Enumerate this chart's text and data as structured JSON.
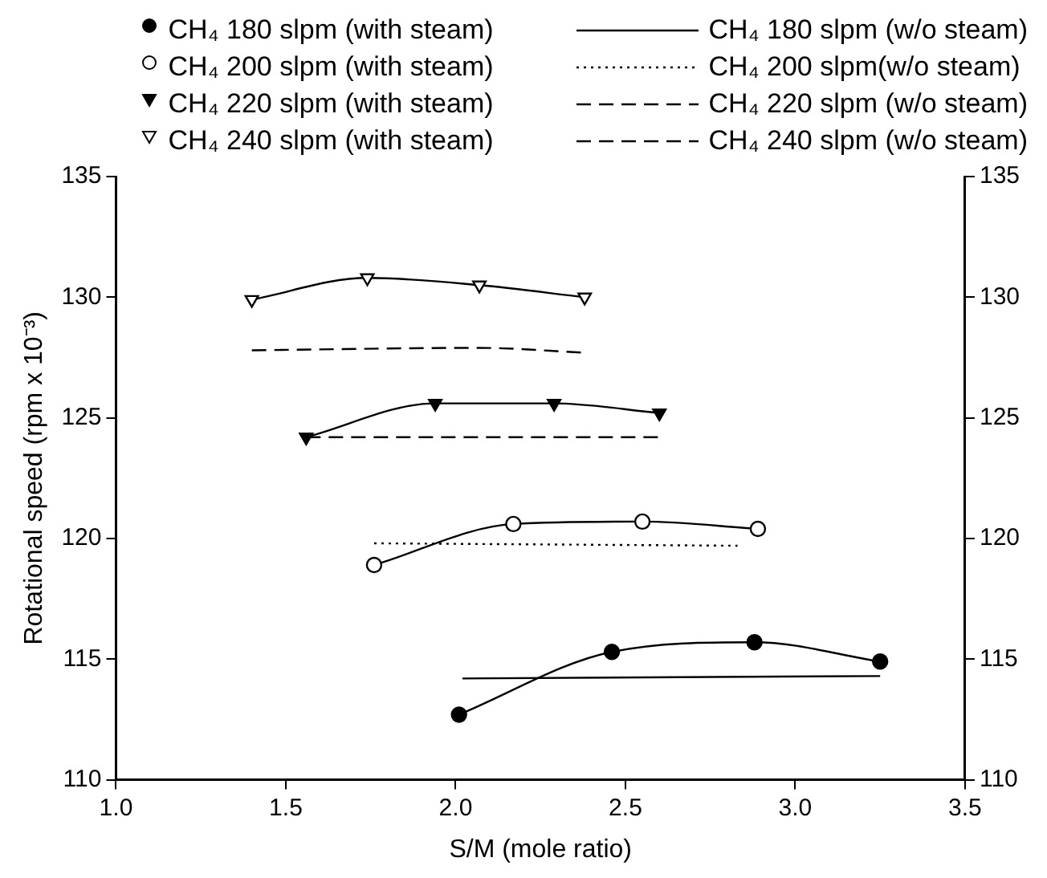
{
  "chart_data": {
    "type": "line",
    "xlabel": "S/M (mole ratio)",
    "ylabel": "Rotational speed (rpm x 10⁻³)",
    "xlim": [
      1.0,
      3.5
    ],
    "xticks": [
      {
        "value": 1,
        "label": "1.0"
      },
      1.5,
      {
        "value": 2,
        "label": "2.0"
      },
      2.5,
      {
        "value": 3,
        "label": "3.0"
      },
      3.5
    ],
    "ylim": [
      110,
      135
    ],
    "yticks": [
      110,
      115,
      120,
      125,
      130,
      135
    ],
    "y2lim": [
      110,
      135
    ],
    "y2ticks": [
      110,
      115,
      120,
      125,
      130,
      135
    ],
    "grid": false,
    "legend": "top",
    "series": [
      {
        "name": "CH₄ 180 slpm (with steam)",
        "color": "#000000",
        "colors": [
          "#000000",
          "#000000",
          "#000000",
          "#000000"
        ],
        "marker": "circle",
        "line_style": "solid",
        "x": [
          2.01,
          2.46,
          2.88,
          3.25
        ],
        "values": [
          112.7,
          115.3,
          115.7,
          114.9
        ]
      },
      {
        "name": "CH₄ 180 slpm (w/o steam)",
        "color": "#000000",
        "marker": "none",
        "line_style": "solid",
        "x": [
          2.02,
          3.25
        ],
        "values": [
          114.2,
          114.3
        ]
      },
      {
        "name": "CH₄ 200 slpm (with steam)",
        "color": "#000000",
        "colors": [
          "#ffffff",
          "#ffffff",
          "#ffffff",
          "#ffffff"
        ],
        "marker": "circle",
        "line_style": "solid",
        "x": [
          1.76,
          2.17,
          2.55,
          2.89
        ],
        "values": [
          118.9,
          120.6,
          120.7,
          120.4
        ]
      },
      {
        "name": "CH₄ 200 slpm(w/o steam)",
        "color": "#000000",
        "marker": "none",
        "line_style": "dotted",
        "x": [
          1.76,
          2.83
        ],
        "values": [
          119.8,
          119.7
        ]
      },
      {
        "name": "CH₄ 220 slpm (with steam)",
        "color": "#000000",
        "colors": [
          "#000000",
          "#000000",
          "#000000",
          "#000000"
        ],
        "marker": "triangle",
        "line_style": "solid",
        "x": [
          1.56,
          1.94,
          2.29,
          2.6
        ],
        "values": [
          124.2,
          125.6,
          125.6,
          125.2
        ]
      },
      {
        "name": "CH₄ 220 slpm (w/o steam)",
        "color": "#000000",
        "marker": "none",
        "line_style": "dashed",
        "x": [
          1.56,
          2.6
        ],
        "values": [
          124.2,
          124.2
        ]
      },
      {
        "name": "CH₄ 240 slpm (with steam)",
        "color": "#000000",
        "colors": [
          "#ffffff",
          "#ffffff",
          "#ffffff",
          "#ffffff"
        ],
        "marker": "triangle",
        "line_style": "solid",
        "x": [
          1.4,
          1.74,
          2.07,
          2.38
        ],
        "values": [
          129.9,
          130.8,
          130.5,
          130.0
        ]
      },
      {
        "name": "CH₄ 240 slpm (w/o steam)",
        "color": "#000000",
        "marker": "none",
        "line_style": "dashed",
        "x": [
          1.4,
          2.07,
          2.38
        ],
        "values": [
          127.8,
          127.9,
          127.7
        ]
      }
    ]
  }
}
